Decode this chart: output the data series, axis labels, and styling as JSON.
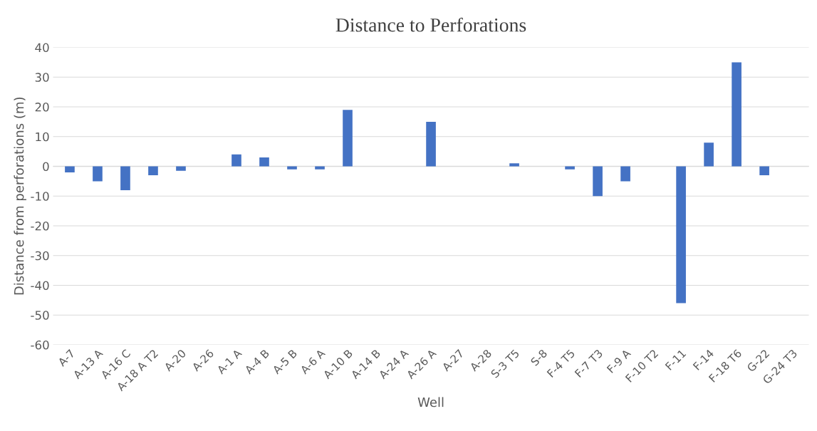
{
  "chart_data": {
    "type": "bar",
    "title": "Distance to Perforations",
    "xlabel": "Well",
    "ylabel": "Distance from perforations (m)",
    "categories": [
      "A-7",
      "A-13 A",
      "A-16 C",
      "A-18 A T2",
      "A-20",
      "A-26",
      "A-1 A",
      "A-4 B",
      "A-5 B",
      "A-6 A",
      "A-10 B",
      "A-14 B",
      "A-24 A",
      "A-26 A",
      "A-27",
      "A-28",
      "S-3 T5",
      "S-8",
      "F-4 T5",
      "F-7 T3",
      "F-9 A",
      "F-10 T2",
      "F-11",
      "F-14",
      "F-18 T6",
      "G-22",
      "G-24 T3"
    ],
    "values": [
      -2,
      -5,
      -8,
      -3,
      -1.5,
      0,
      4,
      3,
      -1,
      -1,
      19,
      0,
      0,
      15,
      0,
      0,
      1,
      0,
      -1,
      -10,
      -5,
      0,
      -46,
      8,
      35,
      -3,
      0
    ],
    "color": "#4472c4",
    "ylim": [
      -60,
      40
    ],
    "yticks": [
      -60,
      -50,
      -40,
      -30,
      -20,
      -10,
      0,
      10,
      20,
      30,
      40
    ],
    "grid": "y"
  }
}
